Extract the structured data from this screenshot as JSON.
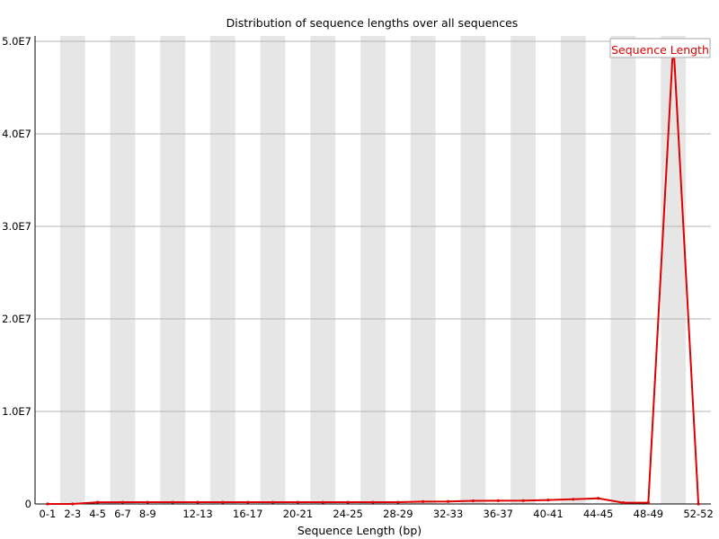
{
  "chart_data": {
    "type": "line",
    "title": "Distribution of sequence lengths over all sequences",
    "xlabel": "Sequence Length (bp)",
    "ylabel": "",
    "ylim": [
      0,
      50000000
    ],
    "yticks": [
      {
        "value": 0,
        "label": "0"
      },
      {
        "value": 10000000,
        "label": "1.0E7"
      },
      {
        "value": 20000000,
        "label": "2.0E7"
      },
      {
        "value": 30000000,
        "label": "3.0E7"
      },
      {
        "value": 40000000,
        "label": "4.0E7"
      },
      {
        "value": 50000000,
        "label": "5.0E7"
      }
    ],
    "grid": true,
    "alternating_column_bands": true,
    "legend_position": "top-right",
    "categories": [
      "0-1",
      "2-3",
      "4-5",
      "6-7",
      "8-9",
      "10-11",
      "12-13",
      "14-15",
      "16-17",
      "18-19",
      "20-21",
      "22-23",
      "24-25",
      "26-27",
      "28-29",
      "30-31",
      "32-33",
      "34-35",
      "36-37",
      "38-39",
      "40-41",
      "42-43",
      "44-45",
      "46-47",
      "48-49",
      "50-51",
      "52-52"
    ],
    "tick_labels": [
      "0-1",
      "2-3",
      "4-5",
      "6-7",
      "8-9",
      "",
      "12-13",
      "",
      "16-17",
      "",
      "20-21",
      "",
      "24-25",
      "",
      "28-29",
      "",
      "32-33",
      "",
      "36-37",
      "",
      "40-41",
      "",
      "44-45",
      "",
      "48-49",
      "",
      "52-52"
    ],
    "series": [
      {
        "name": "Sequence Length",
        "color": "#dd0000",
        "values": [
          0,
          0,
          180000,
          190000,
          190000,
          190000,
          190000,
          190000,
          190000,
          190000,
          190000,
          190000,
          190000,
          190000,
          190000,
          260000,
          270000,
          340000,
          350000,
          360000,
          430000,
          510000,
          610000,
          130000,
          140000,
          50000000,
          0
        ]
      }
    ]
  }
}
